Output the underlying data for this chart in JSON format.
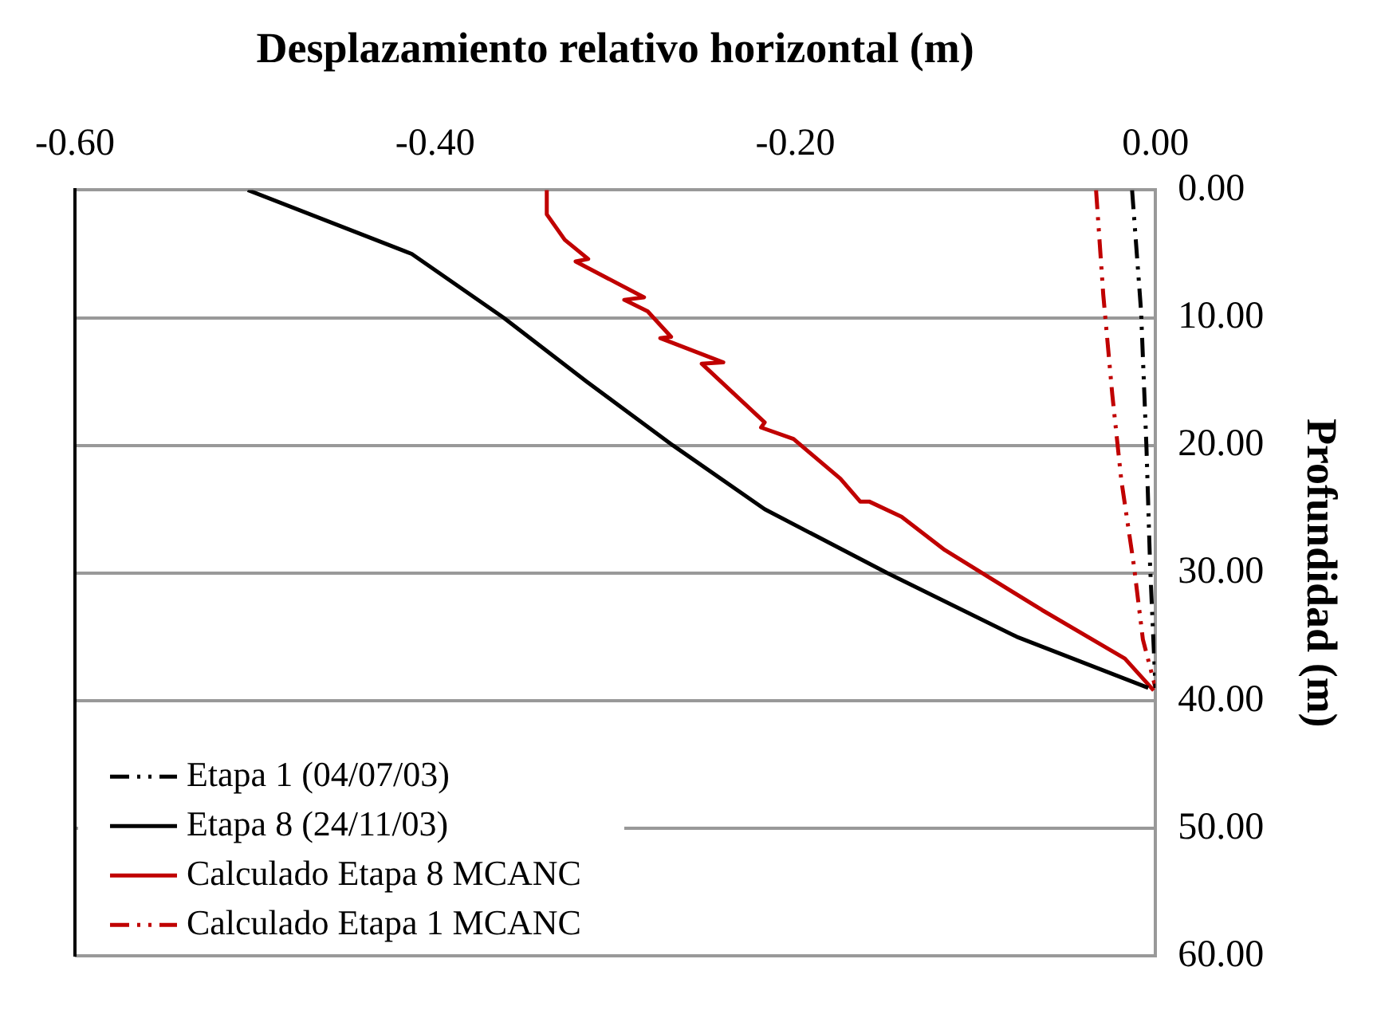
{
  "chart_data": {
    "type": "line",
    "xlabel": "Desplazamiento relativo horizontal (m)",
    "ylabel": "Profundidad (m)",
    "xlim": [
      -0.6,
      0
    ],
    "xticks": [
      {
        "value": -0.6,
        "label": "-0.60"
      },
      {
        "value": -0.4,
        "label": "-0.40"
      },
      {
        "value": -0.2,
        "label": "-0.20"
      },
      {
        "value": 0,
        "label": "0.00"
      }
    ],
    "ylim": [
      60,
      0
    ],
    "yticks": [
      {
        "value": 0,
        "label": "0.00"
      },
      {
        "value": 10,
        "label": "10.00"
      },
      {
        "value": 20,
        "label": "20.00"
      },
      {
        "value": 30,
        "label": "30.00"
      },
      {
        "value": 40,
        "label": "40.00"
      },
      {
        "value": 50,
        "label": "50.00"
      },
      {
        "value": 60,
        "label": "60.00"
      }
    ],
    "grid": "y",
    "legend": "bottom left",
    "marker": "none",
    "series": [
      {
        "name": "Etapa 1 (04/07/03)",
        "color": "#000000",
        "line_style": "dashed",
        "x": [
          -0.013,
          -0.008,
          -0.005,
          -0.003,
          0
        ],
        "values": [
          0,
          9.5,
          20.2,
          29.4,
          39
        ]
      },
      {
        "name": "Etapa 8 (24/11/03)",
        "color": "#000000",
        "line_style": "solid",
        "x": [
          -0.504,
          -0.413,
          -0.362,
          -0.316,
          -0.268,
          -0.217,
          -0.149,
          -0.077,
          -0.004
        ],
        "values": [
          0,
          5,
          10,
          15,
          20,
          25,
          30,
          35,
          39
        ]
      },
      {
        "name": "Calculado Etapa 8 MCANC",
        "color": "#c00000",
        "line_style": "solid",
        "x": [
          -0.338,
          -0.338,
          -0.328,
          -0.315,
          -0.322,
          -0.284,
          -0.295,
          -0.282,
          -0.269,
          -0.275,
          -0.24,
          -0.252,
          -0.217,
          -0.219,
          -0.201,
          -0.175,
          -0.164,
          -0.159,
          -0.141,
          -0.117,
          -0.063,
          -0.017,
          -0.001
        ],
        "values": [
          0,
          1.9,
          3.9,
          5.4,
          5.6,
          8.4,
          8.6,
          9.5,
          11.5,
          11.6,
          13.5,
          13.6,
          18.2,
          18.6,
          19.5,
          22.6,
          24.4,
          24.4,
          25.6,
          28.2,
          32.9,
          36.7,
          39.2
        ]
      },
      {
        "name": "Calculado Etapa 1 MCANC",
        "color": "#c00000",
        "line_style": "dashed",
        "x": [
          -0.033,
          -0.029,
          -0.024,
          -0.019,
          -0.012,
          -0.007,
          0
        ],
        "values": [
          0,
          8.2,
          16,
          22.7,
          29.4,
          35.2,
          39
        ]
      }
    ]
  }
}
